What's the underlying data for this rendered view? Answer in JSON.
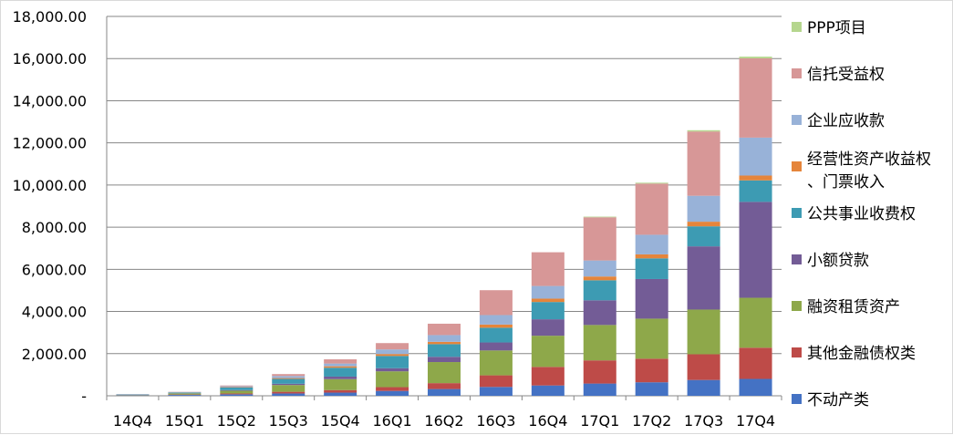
{
  "chart_data": {
    "type": "bar",
    "stacked": true,
    "title": "",
    "xlabel": "",
    "ylabel": "",
    "ylim": [
      0,
      18000
    ],
    "yticks": [
      0,
      2000,
      4000,
      6000,
      8000,
      10000,
      12000,
      14000,
      16000,
      18000
    ],
    "ytick_labels": [
      "-",
      "2,000.00",
      "4,000.00",
      "6,000.00",
      "8,000.00",
      "10,000.00",
      "12,000.00",
      "14,000.00",
      "16,000.00",
      "18,000.00"
    ],
    "grid": true,
    "legend_position": "right",
    "categories": [
      "14Q4",
      "15Q1",
      "15Q2",
      "15Q3",
      "15Q4",
      "16Q1",
      "16Q2",
      "16Q3",
      "16Q4",
      "17Q1",
      "17Q2",
      "17Q3",
      "17Q4"
    ],
    "series": [
      {
        "name": "不动产类",
        "color": "#4472c4",
        "values": [
          20,
          40,
          70,
          110,
          150,
          230,
          320,
          420,
          490,
          580,
          640,
          750,
          800
        ]
      },
      {
        "name": "其他金融债权类",
        "color": "#be4b48",
        "values": [
          10,
          20,
          40,
          80,
          120,
          180,
          280,
          550,
          880,
          1100,
          1120,
          1220,
          1480
        ]
      },
      {
        "name": "融资租赁资产",
        "color": "#8ea84a",
        "values": [
          20,
          50,
          130,
          320,
          520,
          750,
          1000,
          1180,
          1480,
          1680,
          1900,
          2120,
          2370
        ]
      },
      {
        "name": "小额贷款",
        "color": "#735c96",
        "values": [
          10,
          10,
          30,
          60,
          120,
          150,
          250,
          380,
          780,
          1170,
          1880,
          3000,
          4550
        ]
      },
      {
        "name": "公共事业收费权",
        "color": "#3d9bb3",
        "values": [
          10,
          30,
          120,
          230,
          420,
          580,
          600,
          700,
          820,
          950,
          980,
          950,
          1020
        ]
      },
      {
        "name": "经营性资产收益权、门票收入",
        "color": "#e5853b",
        "values": [
          0,
          10,
          20,
          40,
          70,
          90,
          110,
          150,
          160,
          180,
          190,
          220,
          230
        ]
      },
      {
        "name": "企业应收款",
        "color": "#98b2d8",
        "values": [
          10,
          20,
          50,
          100,
          130,
          220,
          320,
          450,
          600,
          760,
          930,
          1230,
          1800
        ]
      },
      {
        "name": "信托受益权",
        "color": "#d79797",
        "values": [
          0,
          10,
          30,
          90,
          200,
          300,
          540,
          1180,
          1600,
          2050,
          2430,
          3050,
          3760
        ]
      },
      {
        "name": "PPP项目",
        "color": "#b5d68e",
        "values": [
          0,
          0,
          0,
          0,
          0,
          0,
          0,
          0,
          0,
          30,
          40,
          60,
          80
        ]
      }
    ]
  }
}
